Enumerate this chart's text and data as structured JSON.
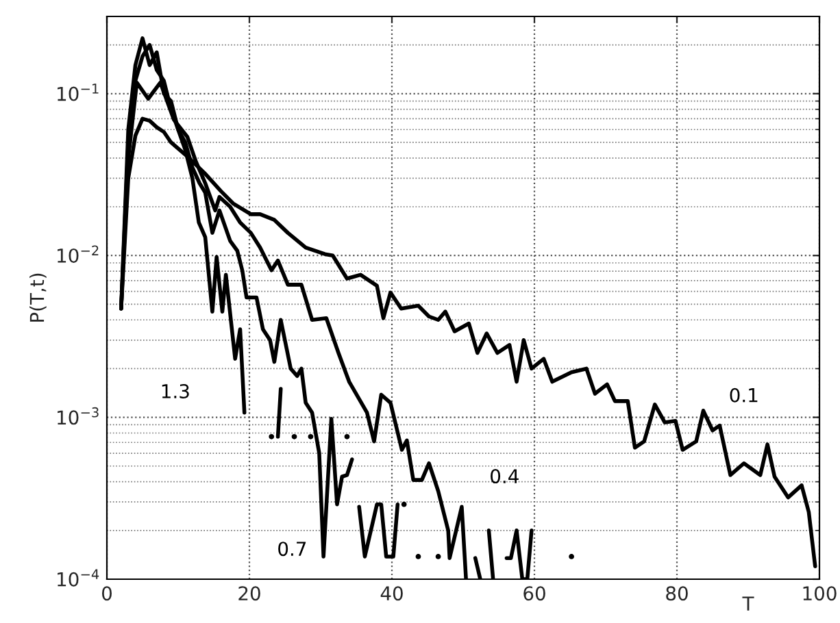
{
  "chart_data": {
    "type": "line",
    "xlabel": "T",
    "ylabel": "P(T,t)",
    "xlim": [
      0,
      100
    ],
    "ylim": [
      0.0001,
      0.3
    ],
    "xticks": [
      0,
      20,
      40,
      60,
      80,
      100
    ],
    "yticks": [
      {
        "value": 0.0001,
        "label": "10$^{−4}$"
      },
      {
        "value": 0.001,
        "label": "10$^{−3}$"
      },
      {
        "value": 0.01,
        "label": "10$^{−2}$"
      },
      {
        "value": 0.1,
        "label": "10$^{−1}$"
      }
    ],
    "log": "y",
    "grid": true,
    "legend": false,
    "marker": "none",
    "line_style": "solid",
    "series": [
      {
        "name": "0.1",
        "color": "#000000",
        "x": [
          2,
          3,
          4,
          5,
          6,
          7,
          8,
          9,
          11,
          13.8,
          16,
          17.7,
          20.2,
          21.5,
          23.5,
          25.4,
          27.9,
          30.6,
          31.7,
          33.7,
          35.6,
          37.9,
          38.8,
          39.8,
          41.3,
          43.7,
          45.2,
          46.5,
          47.5,
          48.8,
          50.8,
          52,
          53.3,
          54.8,
          56.5,
          57.5,
          58.5,
          59.6,
          61.3,
          62.5,
          65.2,
          67.3,
          68.5,
          70.2,
          71.3,
          73.1,
          74.1,
          75.4,
          76.9,
          78.3,
          79.8,
          80.8,
          82.7,
          83.7,
          85,
          86,
          87.5,
          89.4,
          91.7,
          92.7,
          93.7,
          95.6,
          97.5,
          98.5,
          99.4
        ],
        "values": [
          0.0047,
          0.03,
          0.055,
          0.07,
          0.068,
          0.062,
          0.058,
          0.05,
          0.042,
          0.032,
          0.025,
          0.021,
          0.018,
          0.018,
          0.0166,
          0.0138,
          0.0112,
          0.0102,
          0.01,
          0.0072,
          0.0076,
          0.0065,
          0.0041,
          0.0059,
          0.0047,
          0.0049,
          0.0042,
          0.004,
          0.0045,
          0.0034,
          0.0038,
          0.0025,
          0.0033,
          0.0025,
          0.0028,
          0.00166,
          0.003,
          0.002,
          0.0023,
          0.00166,
          0.0019,
          0.002,
          0.0014,
          0.0016,
          0.00126,
          0.00126,
          0.00065,
          0.00071,
          0.0012,
          0.00093,
          0.00095,
          0.00063,
          0.00071,
          0.0011,
          0.00083,
          0.00089,
          0.00044,
          0.00052,
          0.00044,
          0.00068,
          0.00043,
          0.00032,
          0.00038,
          0.00026,
          0.00012
        ]
      },
      {
        "name": "0.4",
        "color": "#000000",
        "x": [
          2,
          3,
          4.2,
          5.8,
          7.5,
          9.4,
          11.3,
          12.5,
          13.8,
          15.2,
          15.8,
          17.3,
          18.7,
          20.2,
          21.5,
          23.1,
          24,
          25.4,
          27.3,
          28.8,
          30.8,
          32.5,
          34,
          36.5,
          37.5,
          38.5,
          39.8,
          41.4,
          42.1,
          43,
          44.2,
          45.2,
          46.5,
          47.9,
          48.1,
          49.8,
          50.4,
          51.2,
          51.7,
          52.4,
          53,
          53.6,
          54.2,
          55.5,
          56.1,
          56.7,
          57.5,
          58.3,
          59,
          59.6
        ],
        "values": [
          0.0047,
          0.04,
          0.117,
          0.093,
          0.117,
          0.069,
          0.054,
          0.038,
          0.028,
          0.019,
          0.023,
          0.02,
          0.016,
          0.0138,
          0.0112,
          0.0081,
          0.0093,
          0.0066,
          0.0066,
          0.004,
          0.0041,
          0.0025,
          0.00166,
          0.00107,
          0.00071,
          0.00138,
          0.00123,
          0.00063,
          0.00072,
          0.00041,
          0.00041,
          0.00052,
          0.00035,
          0.0002,
          0.000135,
          0.00028,
          0.0001,
          null,
          0.000135,
          0.0001,
          null,
          0.0002,
          0.0001,
          null,
          0.000135,
          0.000135,
          0.0002,
          0.0001,
          0.0001,
          0.0002
        ]
      },
      {
        "name": "0.7",
        "color": "#000000",
        "x": [
          2,
          3,
          4,
          5,
          6,
          7,
          8,
          9,
          10,
          11,
          12,
          13,
          13.8,
          14.8,
          15.8,
          17.3,
          18.3,
          19,
          19.6,
          21,
          21.9,
          22.9,
          23.5,
          24.4,
          25.8,
          26.7,
          27.3,
          27.9,
          28.8,
          29.8,
          30.4,
          31.5,
          32.3,
          33,
          33.7,
          34.4,
          35,
          35.4,
          36.2,
          37.9,
          38.5,
          39.2,
          40.2,
          40.8,
          41.2,
          41.7,
          42.2,
          43.7,
          44.3,
          46.5,
          47.1,
          65.2
        ],
        "values": [
          0.0047,
          0.05,
          0.12,
          0.17,
          0.2,
          0.14,
          0.12,
          0.08,
          0.06,
          0.05,
          0.035,
          0.028,
          0.0245,
          0.0138,
          0.019,
          0.0123,
          0.0107,
          0.0081,
          0.0055,
          0.0055,
          0.0035,
          0.003,
          0.0022,
          0.004,
          0.002,
          0.0018,
          0.002,
          0.00123,
          0.00107,
          0.0006,
          0.000138,
          0.00098,
          0.00029,
          0.00043,
          0.00044,
          0.00055,
          null,
          0.00028,
          0.000138,
          0.00029,
          0.00029,
          0.000138,
          0.000138,
          0.00029,
          null,
          0.00029,
          null,
          0.000138,
          null,
          0.000138,
          null,
          0.000138
        ]
      },
      {
        "name": "1.3",
        "color": "#000000",
        "x": [
          2,
          3,
          4,
          5,
          6,
          7,
          8,
          9,
          10,
          11,
          12,
          12.9,
          13.8,
          14.8,
          15.4,
          16.2,
          16.7,
          18,
          18.7,
          19.3,
          20,
          23.1,
          23.7,
          24,
          24.4,
          25,
          26.3,
          27,
          28.6,
          29.2,
          33.7
        ],
        "values": [
          0.0047,
          0.06,
          0.15,
          0.22,
          0.15,
          0.18,
          0.1,
          0.09,
          0.06,
          0.045,
          0.03,
          0.016,
          0.013,
          0.0045,
          0.0098,
          0.0045,
          0.0076,
          0.0023,
          0.0035,
          0.00107,
          null,
          0.00076,
          null,
          0.00076,
          0.0015,
          null,
          0.00076,
          null,
          0.00076,
          null,
          0.00076
        ]
      }
    ]
  }
}
